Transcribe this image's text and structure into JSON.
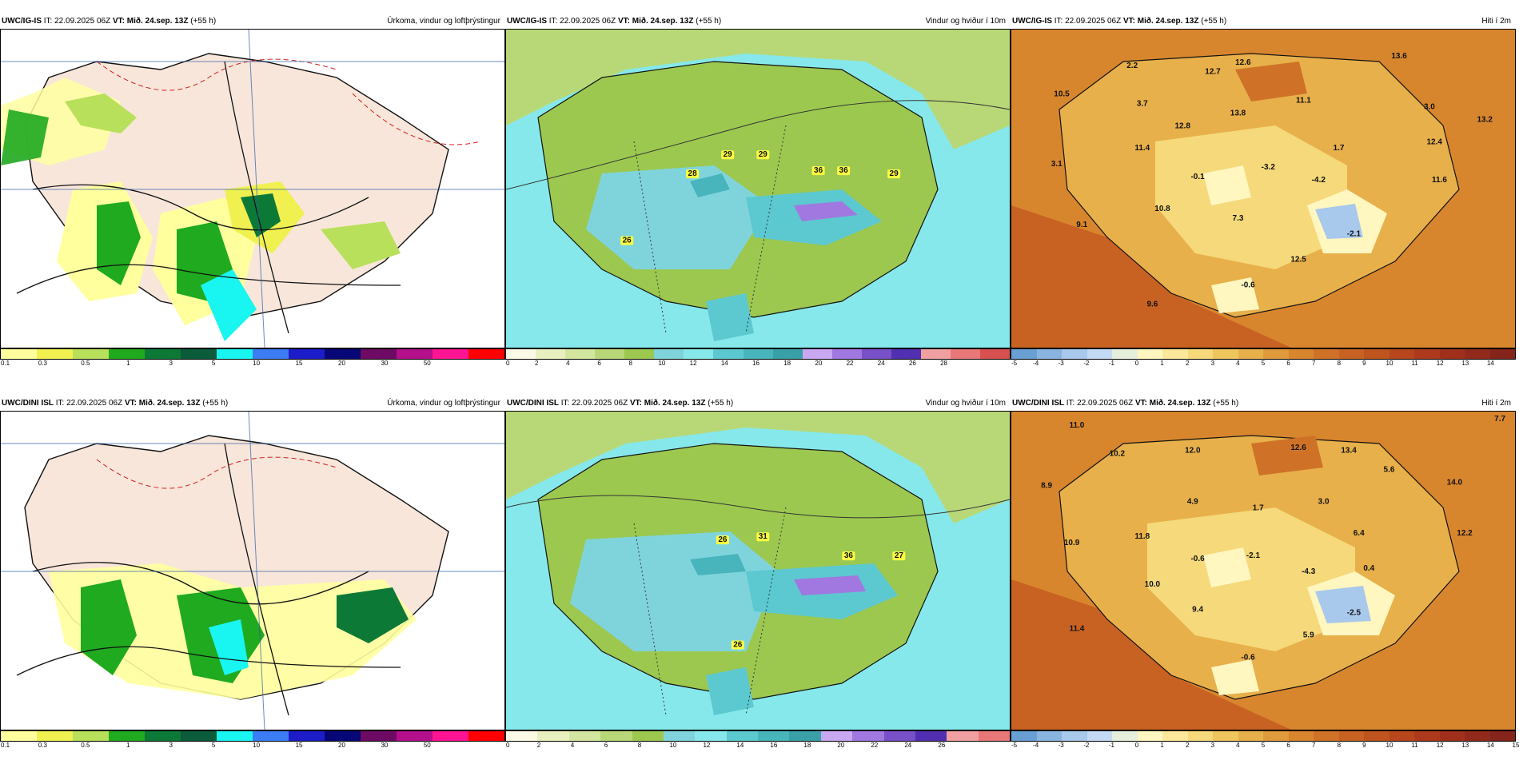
{
  "panels": [
    {
      "model": "UWC/IG-IS",
      "it_label": "IT:",
      "it_value": "22.09.2025 06Z",
      "vt_label": "VT:",
      "vt_value": "Mið. 24.sep. 13Z",
      "lead": "(+55 h)",
      "title": "Úrkoma, vindur og loftþrýstingur",
      "colorbar": {
        "colors": [
          "#ffff9e",
          "#f0f050",
          "#b8e05a",
          "#1faa1f",
          "#0c7a36",
          "#0a5c3a",
          "#19f5f0",
          "#3c7cf5",
          "#1c1cc8",
          "#070778",
          "#6e0a64",
          "#b4108c",
          "#ff1493",
          "#ff0000"
        ],
        "ticks": [
          "0.1",
          "0.3",
          "0.5",
          "1",
          "3",
          "5",
          "10",
          "15",
          "20",
          "30",
          "50"
        ]
      }
    },
    {
      "model": "UWC/IG-IS",
      "it_label": "IT:",
      "it_value": "22.09.2025 06Z",
      "vt_label": "VT:",
      "vt_value": "Mið. 24.sep. 13Z",
      "lead": "(+55 h)",
      "title": "Vindur og hviður í 10m",
      "labels": [
        "29",
        "29",
        "28",
        "36",
        "36",
        "29",
        "26"
      ],
      "colorbar": {
        "colors": [
          "#fafae6",
          "#e8f0c0",
          "#d2e6a0",
          "#b8d878",
          "#9cc850",
          "#7fd4dc",
          "#86e8ea",
          "#5cc8d0",
          "#48b4bc",
          "#3aa0a8",
          "#c8a8f0",
          "#a078e0",
          "#7850c8",
          "#5030b0",
          "#f0a0a0",
          "#e87878",
          "#d85050"
        ],
        "ticks": [
          "0",
          "2",
          "4",
          "6",
          "8",
          "10",
          "12",
          "14",
          "16",
          "18",
          "20",
          "22",
          "24",
          "26",
          "28"
        ]
      }
    },
    {
      "model": "UWC/IG-IS",
      "it_label": "IT:",
      "it_value": "22.09.2025 06Z",
      "vt_label": "VT:",
      "vt_value": "Mið. 24.sep. 13Z",
      "lead": "(+55 h)",
      "title": "Hiti í 2m",
      "labels": [
        "12.6",
        "13.6",
        "2.2",
        "12.7",
        "10.5",
        "3.7",
        "11.1",
        "3.0",
        "13.8",
        "13.2",
        "12.8",
        "12.4",
        "11.4",
        "1.7",
        "3.1",
        "-0.1",
        "-3.2",
        "-4.2",
        "11.6",
        "10.8",
        "7.3",
        "9.1",
        "-2.1",
        "12.5",
        "-0.6",
        "9.6"
      ],
      "colorbar": {
        "colors": [
          "#6a9fd4",
          "#8ab4e0",
          "#a8c8ec",
          "#c4daf4",
          "#e6eedc",
          "#fff6c0",
          "#fbe89a",
          "#f5d97a",
          "#efc55e",
          "#e8b04a",
          "#e09a3c",
          "#d8862e",
          "#cf7228",
          "#c86222",
          "#c0541e",
          "#b8461c",
          "#ad3a1c",
          "#a0301c",
          "#922a1c",
          "#84241a"
        ],
        "ticks": [
          "-5",
          "-4",
          "-3",
          "-2",
          "-1",
          "0",
          "1",
          "2",
          "3",
          "4",
          "5",
          "6",
          "7",
          "8",
          "9",
          "10",
          "11",
          "12",
          "13",
          "14"
        ]
      }
    },
    {
      "model": "UWC/DINI ISL",
      "it_label": "IT:",
      "it_value": "22.09.2025 06Z",
      "vt_label": "VT:",
      "vt_value": "Mið. 24.sep. 13Z",
      "lead": "(+55 h)",
      "title": "Úrkoma, vindur og loftþrýstingur",
      "colorbar": {
        "colors": [
          "#ffff9e",
          "#f0f050",
          "#b8e05a",
          "#1faa1f",
          "#0c7a36",
          "#0a5c3a",
          "#19f5f0",
          "#3c7cf5",
          "#1c1cc8",
          "#070778",
          "#6e0a64",
          "#b4108c",
          "#ff1493",
          "#ff0000"
        ],
        "ticks": [
          "0.1",
          "0.3",
          "0.5",
          "1",
          "3",
          "5",
          "10",
          "15",
          "20",
          "30",
          "50"
        ]
      }
    },
    {
      "model": "UWC/DINI ISL",
      "it_label": "IT:",
      "it_value": "22.09.2025 06Z",
      "vt_label": "VT:",
      "vt_value": "Mið. 24.sep. 13Z",
      "lead": "(+55 h)",
      "title": "Vindur og hviður í 10m",
      "labels": [
        "26",
        "31",
        "36",
        "27",
        "26"
      ],
      "colorbar": {
        "colors": [
          "#fafae6",
          "#e8f0c0",
          "#d2e6a0",
          "#b8d878",
          "#9cc850",
          "#7fd4dc",
          "#86e8ea",
          "#5cc8d0",
          "#48b4bc",
          "#3aa0a8",
          "#c8a8f0",
          "#a078e0",
          "#7850c8",
          "#5030b0",
          "#f0a0a0",
          "#e87878"
        ],
        "ticks": [
          "0",
          "2",
          "4",
          "6",
          "8",
          "10",
          "12",
          "14",
          "16",
          "18",
          "20",
          "22",
          "24",
          "26"
        ]
      }
    },
    {
      "model": "UWC/DINI ISL",
      "it_label": "IT:",
      "it_value": "22.09.2025 06Z",
      "vt_label": "VT:",
      "vt_value": "Mið. 24.sep. 13Z",
      "lead": "(+55 h)",
      "title": "Hiti í 2m",
      "labels": [
        "7.7",
        "11.0",
        "12.6",
        "13.4",
        "10.2",
        "12.0",
        "5.6",
        "14.0",
        "8.9",
        "4.9",
        "1.7",
        "3.0",
        "12.2",
        "10.9",
        "11.8",
        "6.4",
        "-0.6",
        "-2.1",
        "-4.3",
        "0.4",
        "10.0",
        "9.4",
        "-2.5",
        "11.4",
        "5.9",
        "-0.6"
      ],
      "colorbar": {
        "colors": [
          "#6a9fd4",
          "#8ab4e0",
          "#a8c8ec",
          "#c4daf4",
          "#e6eedc",
          "#fff6c0",
          "#fbe89a",
          "#f5d97a",
          "#efc55e",
          "#e8b04a",
          "#e09a3c",
          "#d8862e",
          "#cf7228",
          "#c86222",
          "#c0541e",
          "#b8461c",
          "#ad3a1c",
          "#a0301c",
          "#922a1c",
          "#84241a"
        ],
        "ticks": [
          "-5",
          "-4",
          "-3",
          "-2",
          "-1",
          "0",
          "1",
          "2",
          "3",
          "4",
          "5",
          "6",
          "7",
          "8",
          "9",
          "10",
          "11",
          "12",
          "13",
          "14",
          "15"
        ]
      }
    }
  ]
}
